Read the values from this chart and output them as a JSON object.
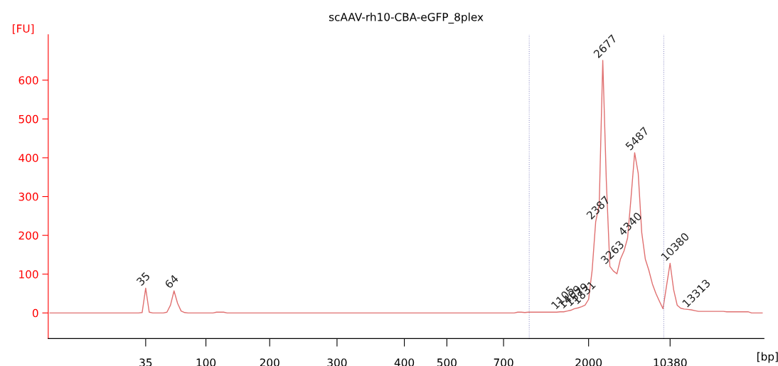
{
  "chart_data": {
    "type": "line",
    "title": "scAAV-rh10-CBA-eGFP_8plex",
    "xlabel": "[bp]",
    "ylabel": "[FU]",
    "categories": [
      null,
      null,
      null,
      null,
      null,
      null,
      null,
      null,
      null,
      null,
      null,
      null,
      null,
      null,
      null,
      null,
      null,
      null,
      null,
      null,
      null,
      null,
      null,
      null,
      null,
      null,
      null,
      "35",
      null,
      null,
      null,
      null,
      null,
      null,
      null,
      null,
      null,
      null,
      null,
      null,
      null,
      null,
      null,
      null,
      "100",
      null,
      null,
      null,
      null,
      null,
      null,
      null,
      null,
      null,
      null,
      null,
      null,
      null,
      null,
      null,
      null,
      null,
      "200",
      null,
      null,
      null,
      null,
      null,
      null,
      null,
      null,
      null,
      null,
      null,
      null,
      null,
      null,
      null,
      null,
      null,
      null,
      "300",
      null,
      null,
      null,
      null,
      null,
      null,
      null,
      null,
      null,
      null,
      null,
      null,
      null,
      null,
      null,
      null,
      null,
      null,
      "400",
      null,
      null,
      null,
      null,
      null,
      null,
      null,
      null,
      null,
      null,
      null,
      "500",
      null,
      null,
      null,
      null,
      null,
      null,
      null,
      null,
      null,
      null,
      null,
      null,
      null,
      null,
      null,
      "700",
      null,
      null,
      null,
      null,
      null,
      null,
      null,
      null,
      null,
      null,
      null,
      null,
      null,
      null,
      null,
      null,
      null,
      null,
      null,
      null,
      null,
      null,
      null,
      "2000",
      null,
      null,
      null,
      null,
      null,
      null,
      null,
      null,
      null,
      null,
      null,
      null,
      null,
      null,
      null,
      null,
      null,
      null,
      null,
      null,
      null,
      null,
      "10380",
      null,
      null,
      null,
      null,
      null,
      null,
      null,
      null,
      null,
      null,
      null,
      null,
      null,
      null,
      null,
      null,
      null,
      null,
      null,
      null,
      null,
      null,
      null,
      null,
      null,
      null
    ],
    "series": [
      {
        "color": "#e07070",
        "values": [
          0,
          0,
          0,
          0,
          0,
          0,
          0,
          0,
          0,
          0,
          0,
          0,
          0,
          0,
          0,
          0,
          0,
          0,
          0,
          0,
          0,
          0,
          0,
          0,
          0,
          0,
          1,
          64,
          2,
          0,
          0,
          0,
          0,
          2,
          20,
          57,
          25,
          5,
          1,
          0,
          0,
          0,
          0,
          0,
          0,
          0,
          0,
          2,
          2,
          2,
          0,
          0,
          0,
          0,
          0,
          0,
          0,
          0,
          0,
          0,
          0,
          0,
          0,
          0,
          0,
          0,
          0,
          0,
          0,
          0,
          0,
          0,
          0,
          0,
          0,
          0,
          0,
          0,
          0,
          0,
          0,
          0,
          0,
          0,
          0,
          0,
          0,
          0,
          0,
          0,
          0,
          0,
          0,
          0,
          0,
          0,
          0,
          0,
          0,
          0,
          0,
          0,
          0,
          0,
          0,
          0,
          0,
          0,
          0,
          0,
          0,
          0,
          0,
          0,
          0,
          0,
          0,
          0,
          0,
          0,
          0,
          0,
          0,
          0,
          0,
          0,
          0,
          0,
          0,
          0,
          0,
          0,
          2,
          2,
          1,
          2,
          2,
          2,
          2,
          2,
          2,
          2,
          2,
          2,
          3,
          3,
          5,
          7,
          11,
          13,
          16,
          20,
          35,
          110,
          235,
          280,
          651,
          341,
          120,
          108,
          101,
          139,
          160,
          193,
          300,
          413,
          360,
          207,
          139,
          110,
          75,
          50,
          30,
          11,
          70,
          128,
          60,
          20,
          12,
          10,
          9,
          8,
          6,
          4,
          4,
          4,
          4,
          4,
          4,
          4,
          4,
          3,
          3,
          3,
          3,
          3,
          3,
          3,
          0,
          0,
          0,
          0
        ]
      }
    ],
    "ylim": [
      -66,
      717
    ],
    "yticks": [
      0,
      100,
      200,
      300,
      400,
      500,
      600
    ],
    "annotations": [
      {
        "text": "35",
        "y": 64
      },
      {
        "text": "64",
        "y": 57
      },
      {
        "text": "1105",
        "y": 3
      },
      {
        "text": "1409",
        "y": 5
      },
      {
        "text": "1579",
        "y": 11
      },
      {
        "text": "1831",
        "y": 16
      },
      {
        "text": "2387",
        "y": 235
      },
      {
        "text": "2677",
        "y": 651
      },
      {
        "text": "3263",
        "y": 120
      },
      {
        "text": "4340",
        "y": 193
      },
      {
        "text": "5487",
        "y": 413
      },
      {
        "text": "10380",
        "x": "10380",
        "y": 128
      },
      {
        "text": "13313",
        "y": 8
      }
    ],
    "grid": false,
    "legend": false,
    "marker": "none",
    "line_style": "solid"
  }
}
